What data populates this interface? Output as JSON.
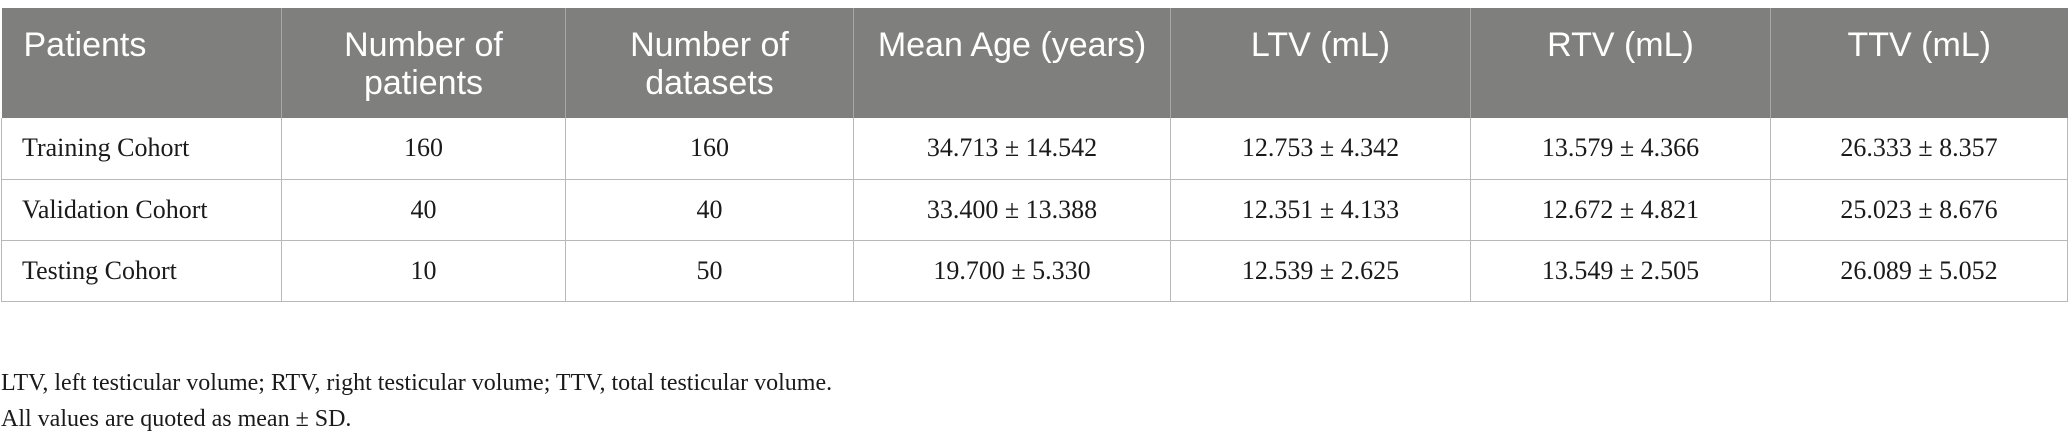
{
  "table": {
    "headers": [
      "Patients",
      "Number of patients",
      "Number of datasets",
      "Mean Age (years)",
      "LTV (mL)",
      "RTV (mL)",
      "TTV (mL)"
    ],
    "rows": [
      [
        "Training Cohort",
        "160",
        "160",
        "34.713 ± 14.542",
        "12.753 ± 4.342",
        "13.579 ± 4.366",
        "26.333 ± 8.357"
      ],
      [
        "Validation Cohort",
        "40",
        "40",
        "33.400 ± 13.388",
        "12.351 ± 4.133",
        "12.672 ± 4.821",
        "25.023 ± 8.676"
      ],
      [
        "Testing Cohort",
        "10",
        "50",
        "19.700 ± 5.330",
        "12.539 ± 2.625",
        "13.549 ± 2.505",
        "26.089 ± 5.052"
      ]
    ]
  },
  "footnotes": [
    "LTV, left testicular volume; RTV, right testicular volume; TTV, total testicular volume.",
    "All values are quoted as mean ± SD."
  ],
  "colors": {
    "header_background": "#7f7f7e",
    "header_text": "#ffffff",
    "grid_line": "#b8b8b8"
  }
}
